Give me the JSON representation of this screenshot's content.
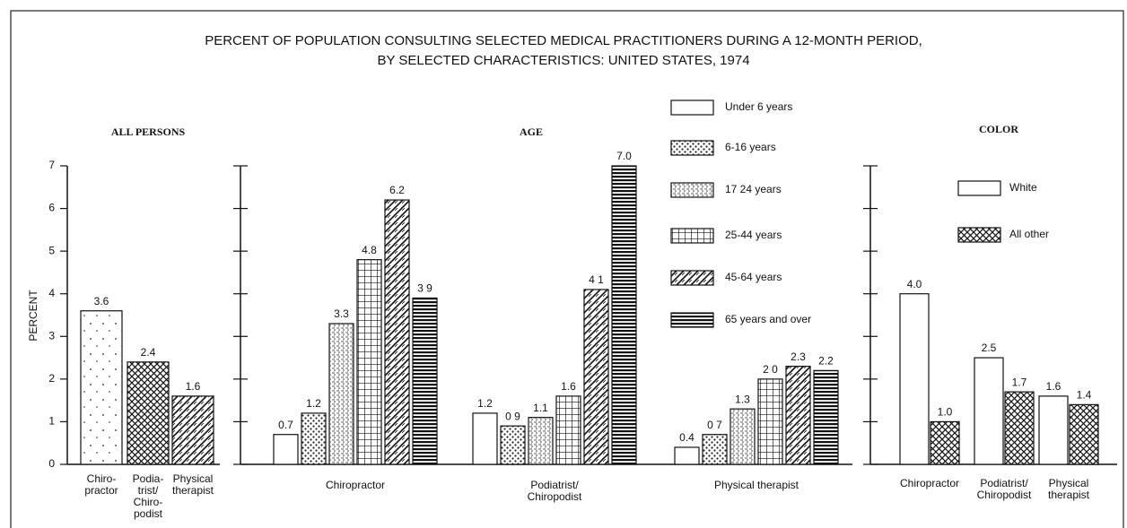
{
  "title": [
    "PERCENT OF POPULATION CONSULTING SELECTED MEDICAL PRACTITIONERS DURING A 12-MONTH PERIOD,",
    "BY SELECTED CHARACTERISTICS: UNITED STATES, 1974"
  ],
  "y_label": "PERCENT",
  "chart_data": [
    {
      "type": "bar",
      "panel_title": "ALL PERSONS",
      "categories": [
        "Chiro-\npractor",
        "Podia-\ntrist/\nChiro-\npodist",
        "Physical\ntherapist"
      ],
      "values": [
        3.6,
        2.4,
        1.6
      ],
      "patterns": [
        "dots",
        "crosshatch",
        "waves"
      ],
      "ylim": [
        0,
        7
      ],
      "yticks": [
        0,
        1,
        2,
        3,
        4,
        5,
        6,
        7
      ]
    },
    {
      "type": "grouped_bar",
      "panel_title": "AGE",
      "categories": [
        "Chiropractor",
        "Podiatrist/\nChiropodist",
        "Physical therapist"
      ],
      "series": [
        {
          "name": "Under 6 years",
          "pattern": "plain",
          "values": [
            0.7,
            1.2,
            0.4
          ],
          "value_labels": [
            "0.7",
            "1.2",
            "0.4"
          ]
        },
        {
          "name": "6-16 years",
          "pattern": "checks",
          "values": [
            1.2,
            0.9,
            0.7
          ],
          "value_labels": [
            "1.2",
            "0 9",
            "0 7"
          ]
        },
        {
          "name": "17 24 years",
          "pattern": "stipple",
          "values": [
            3.3,
            1.1,
            1.3
          ],
          "value_labels": [
            "3.3",
            "1.1",
            "1.3"
          ]
        },
        {
          "name": "25-44 years",
          "pattern": "grid",
          "values": [
            4.8,
            1.6,
            2.0
          ],
          "value_labels": [
            "4.8",
            "1.6",
            "2 0"
          ]
        },
        {
          "name": "45-64 years",
          "pattern": "waves",
          "values": [
            6.2,
            4.1,
            2.3
          ],
          "value_labels": [
            "6.2",
            "4 1",
            "2.3"
          ]
        },
        {
          "name": "65 years and over",
          "pattern": "hlines",
          "values": [
            3.9,
            7.0,
            2.2
          ],
          "value_labels": [
            "3 9",
            "7.0",
            "2.2"
          ]
        }
      ],
      "ylim": [
        0,
        7
      ],
      "yticks": [
        0,
        1,
        2,
        3,
        4,
        5,
        6,
        7
      ]
    },
    {
      "type": "grouped_bar",
      "panel_title": "COLOR",
      "categories": [
        "Chiropractor",
        "Podiatrist/\nChiropodist",
        "Physical\ntherapist"
      ],
      "series": [
        {
          "name": "White",
          "pattern": "plain",
          "values": [
            4.0,
            2.5,
            1.6
          ],
          "value_labels": [
            "4.0",
            "2.5",
            "1.6"
          ]
        },
        {
          "name": "All other",
          "pattern": "crosshatch",
          "values": [
            1.0,
            1.7,
            1.4
          ],
          "value_labels": [
            "1.0",
            "1.7",
            "1.4"
          ]
        }
      ],
      "ylim": [
        0,
        7
      ],
      "yticks": [
        0,
        1,
        2,
        3,
        4,
        5,
        6,
        7
      ]
    }
  ]
}
